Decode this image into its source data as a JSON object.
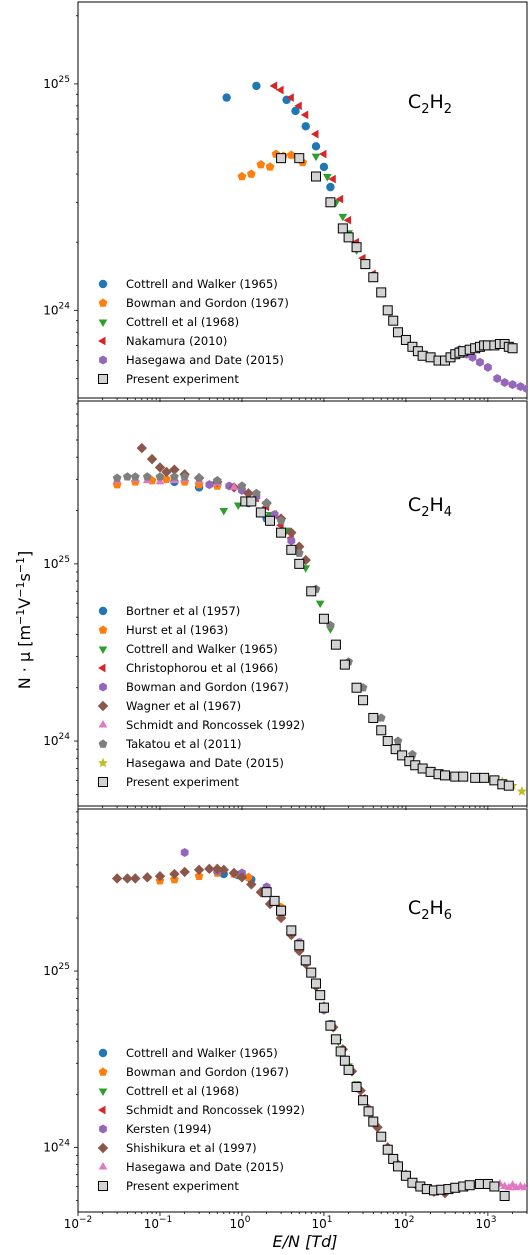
{
  "figure": {
    "ylabel_main": "N · μ [m",
    "ylabel_sup1": "−1",
    "ylabel_mid": "V",
    "ylabel_sup2": "−1",
    "ylabel_s": "s",
    "ylabel_sup3": "−1",
    "ylabel_end": "]",
    "xlabel": "E/N [Td]",
    "x_ticks": [
      {
        "base": "10",
        "exp": "−2",
        "value": 0.01
      },
      {
        "base": "10",
        "exp": "−1",
        "value": 0.1
      },
      {
        "base": "10",
        "exp": "0",
        "value": 1
      },
      {
        "base": "10",
        "exp": "1",
        "value": 10
      },
      {
        "base": "10",
        "exp": "2",
        "value": 100
      },
      {
        "base": "10",
        "exp": "3",
        "value": 1000
      }
    ]
  },
  "chart_data": [
    {
      "type": "scatter",
      "title": "C2H2",
      "title_parts": [
        "C",
        "2",
        "H",
        "2"
      ],
      "x_scale": "log",
      "y_scale": "log",
      "xlim": [
        0.01,
        3000
      ],
      "ylim": [
        4.1e+23,
        2.3e+25
      ],
      "y_ticks": [
        {
          "base": "10",
          "exp": "24",
          "value": 1e+24
        },
        {
          "base": "10",
          "exp": "25",
          "value": 1e+25
        }
      ],
      "legend_position": "lower-left",
      "series": [
        {
          "name": "Cottrell and Walker (1965)",
          "marker": "circle",
          "color": "#1f77b4",
          "x": [
            0.65,
            1.5,
            3.5,
            4.5,
            6,
            8,
            10,
            12
          ],
          "y": [
            8.7e+24,
            9.8e+24,
            8.5e+24,
            7.6e+24,
            6.5e+24,
            5.3e+24,
            4.3e+24,
            3.5e+24
          ]
        },
        {
          "name": "Bowman and Gordon (1967)",
          "marker": "pentagon",
          "color": "#ff7f0e",
          "x": [
            1.0,
            1.3,
            1.7,
            2.2,
            2.6,
            3.2,
            4.0,
            5.5
          ],
          "y": [
            3.9e+24,
            4e+24,
            4.4e+24,
            4.3e+24,
            4.9e+24,
            4.8e+24,
            4.85e+24,
            4.5e+24
          ]
        },
        {
          "name": "Cottrell et al (1968)",
          "marker": "triangle-down",
          "color": "#2ca02c",
          "x": [
            8,
            11,
            14,
            17,
            20,
            25
          ],
          "y": [
            4.8e+24,
            3.9e+24,
            3e+24,
            2.6e+24,
            2.2e+24,
            1.85e+24
          ]
        },
        {
          "name": "Nakamura (2010)",
          "marker": "triangle-left",
          "color": "#d62728",
          "x": [
            2.5,
            3,
            4,
            5,
            6,
            8,
            10,
            13,
            16,
            20,
            25,
            30,
            40,
            50
          ],
          "y": [
            9.8e+24,
            9.4e+24,
            8.7e+24,
            8e+24,
            7.3e+24,
            6e+24,
            4.9e+24,
            3.8e+24,
            3.1e+24,
            2.5e+24,
            2e+24,
            1.7e+24,
            1.45e+24,
            1.2e+24
          ]
        },
        {
          "name": "Hasegawa and Date (2015)",
          "marker": "hexagon",
          "color": "#9467bd",
          "x": [
            450,
            550,
            650,
            800,
            1000,
            1300,
            1600,
            2000,
            2500,
            3000
          ],
          "y": [
            6.7e+23,
            6.4e+23,
            6.2e+23,
            5.9e+23,
            5.6e+23,
            5e+23,
            4.8e+23,
            4.7e+23,
            4.6e+23,
            4.5e+23
          ]
        },
        {
          "name": "Present experiment",
          "marker": "square",
          "color": "#d3d3d3",
          "edgecolor": "#000000",
          "x": [
            3,
            5,
            8,
            12,
            17,
            20,
            25,
            32,
            40,
            50,
            60,
            70,
            80,
            100,
            120,
            140,
            160,
            200,
            250,
            300,
            350,
            400,
            450,
            500,
            600,
            700,
            800,
            900,
            1000,
            1200,
            1400,
            1600,
            1800,
            2000
          ],
          "y": [
            4.7e+24,
            4.7e+24,
            3.9e+24,
            3e+24,
            2.3e+24,
            2.1e+24,
            1.9e+24,
            1.6e+24,
            1.4e+24,
            1.2e+24,
            1e+24,
            9e+23,
            8e+23,
            7.4e+23,
            6.9e+23,
            6.6e+23,
            6.3e+23,
            6.2e+23,
            6e+23,
            6e+23,
            6.2e+23,
            6.4e+23,
            6.5e+23,
            6.6e+23,
            6.7e+23,
            6.8e+23,
            6.9e+23,
            7e+23,
            7e+23,
            7e+23,
            7.1e+23,
            7.1e+23,
            6.9e+23,
            6.8e+23
          ]
        }
      ]
    },
    {
      "type": "scatter",
      "title": "C2H4",
      "title_parts": [
        "C",
        "2",
        "H",
        "4"
      ],
      "x_scale": "log",
      "y_scale": "log",
      "xlim": [
        0.01,
        3000
      ],
      "ylim": [
        4.3e+23,
        8.3e+25
      ],
      "y_ticks": [
        {
          "base": "10",
          "exp": "24",
          "value": 1e+24
        },
        {
          "base": "10",
          "exp": "25",
          "value": 1e+25
        }
      ],
      "legend_position": "lower-left",
      "series": [
        {
          "name": "Bortner et al (1957)",
          "marker": "circle",
          "color": "#1f77b4",
          "x": [
            0.15,
            0.3,
            0.5,
            1.2,
            2,
            3,
            4,
            5
          ],
          "y": [
            2.9e+25,
            2.7e+25,
            2.85e+25,
            2.2e+25,
            1.8e+25,
            1.5e+25,
            1.2e+25,
            1e+25
          ]
        },
        {
          "name": "Hurst et al (1963)",
          "marker": "pentagon",
          "color": "#ff7f0e",
          "x": [
            0.03,
            0.05,
            0.08,
            0.12,
            0.2,
            0.3,
            0.5
          ],
          "y": [
            2.8e+25,
            2.9e+25,
            2.95e+25,
            3e+25,
            2.9e+25,
            2.8e+25,
            2.75e+25
          ]
        },
        {
          "name": "Cottrell and Walker (1965)",
          "marker": "triangle-down",
          "color": "#2ca02c",
          "x": [
            0.6,
            0.9,
            1.4,
            2.2,
            3.5,
            6,
            9,
            12
          ],
          "y": [
            2e+25,
            2.15e+25,
            2.25e+25,
            1.9e+25,
            1.55e+25,
            9.5e+24,
            6e+24,
            4.3e+24
          ]
        },
        {
          "name": "Christophorou et al (1966)",
          "marker": "triangle-left",
          "color": "#d62728",
          "x": [
            1.5,
            2,
            2.5,
            3,
            4,
            5
          ],
          "y": [
            2.35e+25,
            2.1e+25,
            1.9e+25,
            1.65e+25,
            1.4e+25,
            1.2e+25
          ]
        },
        {
          "name": "Bowman and Gordon (1967)",
          "marker": "hexagon",
          "color": "#9467bd",
          "x": [
            0.4,
            0.7,
            1.0,
            1.5,
            2.5,
            4
          ],
          "y": [
            2.8e+25,
            2.75e+25,
            2.6e+25,
            2.4e+25,
            1.9e+25,
            1.35e+25
          ]
        },
        {
          "name": "Wagner et al (1967)",
          "marker": "diamond",
          "color": "#8c564b",
          "x": [
            0.06,
            0.08,
            0.1,
            0.12,
            0.15,
            0.2,
            0.3,
            0.5,
            0.8,
            1.2,
            2,
            3,
            4,
            5,
            6
          ],
          "y": [
            4.5e+25,
            3.9e+25,
            3.5e+25,
            3.3e+25,
            3.4e+25,
            3.2e+25,
            3.05e+25,
            2.9e+25,
            2.7e+25,
            2.5e+25,
            2.2e+25,
            1.8e+25,
            1.5e+25,
            1.25e+25,
            1.05e+25
          ]
        },
        {
          "name": "Schmidt and Roncossek (1992)",
          "marker": "triangle-up",
          "color": "#e377c2",
          "x": [
            0.03,
            0.05,
            0.07,
            0.1,
            0.15,
            0.2,
            0.3,
            0.5,
            0.8
          ],
          "y": [
            2.95e+25,
            3e+25,
            2.95e+25,
            2.9e+25,
            2.95e+25,
            3e+25,
            2.95e+25,
            2.85e+25,
            2.7e+25
          ]
        },
        {
          "name": "Takatou et al (2011)",
          "marker": "pentagon",
          "color": "#7f7f7f",
          "x": [
            0.03,
            0.04,
            0.05,
            0.07,
            0.1,
            0.15,
            0.2,
            0.3,
            0.5,
            1,
            1.5,
            2,
            3,
            5,
            8,
            12,
            20,
            30,
            50,
            80,
            120
          ],
          "y": [
            3.05e+25,
            3.1e+25,
            3.1e+25,
            3.1e+25,
            3.1e+25,
            3.1e+25,
            3.1e+25,
            3.05e+25,
            2.95e+25,
            2.75e+25,
            2.5e+25,
            2.2e+25,
            1.75e+25,
            1.15e+25,
            7.2e+24,
            4.5e+24,
            2.8e+24,
            2e+24,
            1.35e+24,
            1e+24,
            8.4e+23
          ]
        },
        {
          "name": "Hasegawa and Date (2015)",
          "marker": "star",
          "color": "#bcbd22",
          "x": [
            500,
            700,
            1000,
            1500,
            2000,
            2600
          ],
          "y": [
            6.2e+23,
            6.2e+23,
            6.1e+23,
            5.9e+23,
            5.6e+23,
            5.2e+23
          ]
        },
        {
          "name": "Present experiment",
          "marker": "square",
          "color": "#d3d3d3",
          "edgecolor": "#000000",
          "x": [
            1.1,
            1.3,
            1.7,
            2.2,
            3,
            4,
            5,
            7,
            10,
            14,
            18,
            25,
            30,
            40,
            50,
            60,
            75,
            90,
            110,
            130,
            160,
            200,
            250,
            300,
            400,
            500,
            700,
            900,
            1200,
            1500,
            1800
          ],
          "y": [
            2.25e+25,
            2.25e+25,
            1.95e+25,
            1.75e+25,
            1.5e+25,
            1.2e+25,
            1e+25,
            7e+24,
            4.9e+24,
            3.5e+24,
            2.7e+24,
            2e+24,
            1.7e+24,
            1.35e+24,
            1.15e+24,
            1e+24,
            9e+23,
            8.3e+23,
            7.7e+23,
            7.3e+23,
            7e+23,
            6.7e+23,
            6.5e+23,
            6.4e+23,
            6.3e+23,
            6.3e+23,
            6.2e+23,
            6.2e+23,
            6e+23,
            5.7e+23,
            5.6e+23
          ]
        }
      ]
    },
    {
      "type": "scatter",
      "title": "C2H6",
      "title_parts": [
        "C",
        "2",
        "H",
        "6"
      ],
      "x_scale": "log",
      "y_scale": "log",
      "xlim": [
        0.01,
        3000
      ],
      "ylim": [
        4.3e+23,
        8.3e+25
      ],
      "y_ticks": [
        {
          "base": "10",
          "exp": "24",
          "value": 1e+24
        },
        {
          "base": "10",
          "exp": "25",
          "value": 1e+25
        }
      ],
      "legend_position": "lower-left",
      "series": [
        {
          "name": "Cottrell and Walker (1965)",
          "marker": "circle",
          "color": "#1f77b4",
          "x": [
            0.6,
            0.9,
            1.3,
            2,
            3,
            5,
            8,
            12,
            18
          ],
          "y": [
            3.55e+25,
            3.5e+25,
            3.3e+25,
            2.9e+25,
            2.2e+25,
            1.45e+25,
            8.5e+24,
            5e+24,
            3.1e+24
          ]
        },
        {
          "name": "Bowman and Gordon (1967)",
          "marker": "pentagon",
          "color": "#ff7f0e",
          "x": [
            0.1,
            0.15,
            0.3,
            0.5,
            0.8,
            1.2,
            2,
            3
          ],
          "y": [
            3.25e+25,
            3.3e+25,
            3.45e+25,
            3.6e+25,
            3.55e+25,
            3.4e+25,
            2.9e+25,
            2.3e+25
          ]
        },
        {
          "name": "Cottrell et al (1968)",
          "marker": "triangle-down",
          "color": "#2ca02c",
          "x": [
            12,
            15,
            20,
            25,
            30,
            40
          ],
          "y": [
            5e+24,
            4e+24,
            2.9e+24,
            2.3e+24,
            1.9e+24,
            1.4e+24
          ]
        },
        {
          "name": "Schmidt and Roncossek (1992)",
          "marker": "triangle-left",
          "color": "#d62728",
          "x": [
            3,
            5,
            8,
            12,
            20,
            30
          ],
          "y": [
            2.2e+25,
            1.45e+25,
            8.5e+24,
            5e+24,
            2.8e+24,
            1.9e+24
          ]
        },
        {
          "name": "Kersten (1994)",
          "marker": "hexagon",
          "color": "#9467bd",
          "x": [
            0.2,
            0.5,
            1.0,
            2,
            5,
            10,
            20
          ],
          "y": [
            4.7e+25,
            3.7e+25,
            3.6e+25,
            3e+25,
            1.45e+25,
            6e+24,
            2.8e+24
          ]
        },
        {
          "name": "Shishikura et al (1997)",
          "marker": "diamond",
          "color": "#8c564b",
          "x": [
            0.03,
            0.04,
            0.05,
            0.07,
            0.1,
            0.15,
            0.2,
            0.3,
            0.4,
            0.5,
            0.6,
            0.8,
            1.0,
            1.3,
            1.7,
            2.2,
            3,
            4,
            5,
            6,
            8,
            10,
            13,
            17,
            22,
            28,
            35,
            45,
            60,
            80,
            100,
            130,
            170,
            220,
            300
          ],
          "y": [
            3.35e+25,
            3.35e+25,
            3.35e+25,
            3.4e+25,
            3.45e+25,
            3.55e+25,
            3.65e+25,
            3.75e+25,
            3.8e+25,
            3.8e+25,
            3.75e+25,
            3.6e+25,
            3.4e+25,
            3.1e+25,
            2.8e+25,
            2.4e+25,
            2e+25,
            1.6e+25,
            1.3e+25,
            1.1e+25,
            8.2e+24,
            6.3e+24,
            4.8e+24,
            3.6e+24,
            2.7e+24,
            2.1e+24,
            1.65e+24,
            1.3e+24,
            1e+24,
            8e+23,
            7e+23,
            6.2e+23,
            5.8e+23,
            5.6e+23,
            5.5e+23
          ]
        },
        {
          "name": "Hasegawa and Date (2015)",
          "marker": "triangle-up",
          "color": "#e377c2",
          "x": [
            300,
            400,
            500,
            600,
            700,
            800,
            900,
            1000,
            1200,
            1400,
            1600,
            1800,
            2000,
            2200,
            2500,
            2800
          ],
          "y": [
            5.8e+23,
            5.9e+23,
            6e+23,
            6e+23,
            6.1e+23,
            6e+23,
            6.2e+23,
            6.1e+23,
            6e+23,
            6.2e+23,
            6e+23,
            5.9e+23,
            6.1e+23,
            5.9e+23,
            6e+23,
            5.9e+23
          ]
        },
        {
          "name": "Present experiment",
          "marker": "square",
          "color": "#d3d3d3",
          "edgecolor": "#000000",
          "x": [
            2,
            2.5,
            3,
            4,
            5,
            6,
            7,
            8,
            9,
            10,
            12,
            14,
            16,
            18,
            20,
            25,
            30,
            35,
            40,
            50,
            60,
            70,
            80,
            100,
            120,
            150,
            180,
            220,
            270,
            330,
            400,
            500,
            600,
            800,
            1000,
            1200,
            1600
          ],
          "y": [
            2.8e+25,
            2.5e+25,
            2.2e+25,
            1.7e+25,
            1.4e+25,
            1.15e+25,
            9.8e+24,
            8.5e+24,
            7.3e+24,
            6.2e+24,
            4.9e+24,
            4.1e+24,
            3.5e+24,
            3.1e+24,
            2.75e+24,
            2.2e+24,
            1.85e+24,
            1.6e+24,
            1.4e+24,
            1.15e+24,
            9.7e+23,
            8.6e+23,
            7.8e+23,
            6.9e+23,
            6.3e+23,
            6e+23,
            5.8e+23,
            5.7e+23,
            5.75e+23,
            5.8e+23,
            5.9e+23,
            6e+23,
            6.1e+23,
            6.2e+23,
            6.2e+23,
            6e+23,
            5.3e+23
          ]
        }
      ]
    }
  ]
}
